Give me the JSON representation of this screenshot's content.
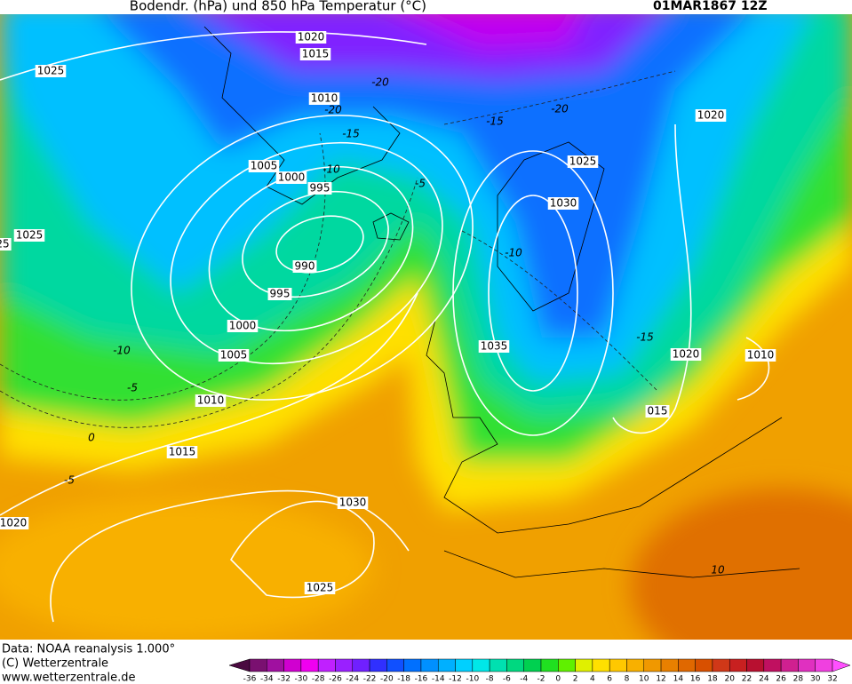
{
  "header": {
    "title": "Bodendr. (hPa) und 850 hPa Temperatur (°C)",
    "time": "01MAR1867 12Z"
  },
  "isobar_labels": [
    1020,
    1015,
    1025,
    1010,
    1020,
    1005,
    1000,
    995,
    1025,
    1030,
    1025,
    25,
    990,
    995,
    1000,
    1035,
    1020,
    1010,
    1005,
    1010,
    "015",
    1015,
    1030,
    1020,
    1025
  ],
  "temperature_labels": [
    -20,
    -20,
    -15,
    -15,
    -20,
    -10,
    -5,
    -10,
    -15,
    -10,
    -5,
    0,
    -5,
    10
  ],
  "footer": {
    "source": "Data: NOAA reanalysis 1.000°",
    "copyright": "(C) Wetterzentrale",
    "url": "www.wetterzentrale.de"
  },
  "colorbar": {
    "ticks": [
      -36,
      -34,
      -32,
      -30,
      -28,
      -26,
      -24,
      -22,
      -20,
      -18,
      -16,
      -14,
      -12,
      -10,
      -8,
      -6,
      -4,
      -2,
      0,
      2,
      4,
      6,
      8,
      10,
      12,
      14,
      16,
      18,
      20,
      22,
      24,
      26,
      28,
      30,
      32
    ],
    "under_color": "#4a0a40",
    "over_color": "#ff50ff",
    "colors": [
      "#7a1070",
      "#a010a0",
      "#d000d0",
      "#f000f0",
      "#c020ff",
      "#9a20ff",
      "#7020ff",
      "#3030ff",
      "#1050ff",
      "#0070ff",
      "#0090ff",
      "#00b0ff",
      "#00d0ff",
      "#00e8e8",
      "#00e0b0",
      "#00d880",
      "#00d050",
      "#20e020",
      "#60f000",
      "#e0f000",
      "#ffe000",
      "#ffc800",
      "#f8b000",
      "#f09800",
      "#e88000",
      "#e06800",
      "#d85000",
      "#d03818",
      "#c82020",
      "#b81030",
      "#c01060",
      "#d02090",
      "#e030c0",
      "#f040e0"
    ]
  }
}
